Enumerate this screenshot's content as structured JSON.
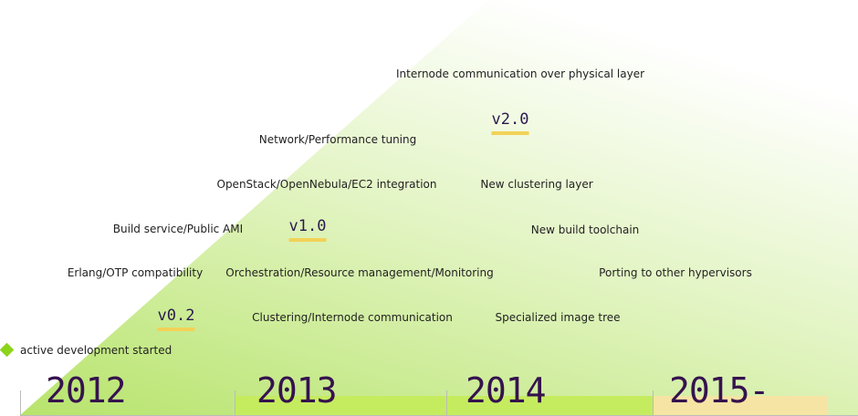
{
  "legend": {
    "text": "active development started",
    "marker_icon": "diamond-icon",
    "marker_color": "#8cd419"
  },
  "colors": {
    "wedge_start": "#b7e46c",
    "wedge_end": "#ffffff",
    "bar_green": "#c5ec5f",
    "bar_yellow": "#f6e4a4",
    "version_underline": "#f2d257",
    "year_text": "#35124e",
    "axis_line": "#bbbbbb"
  },
  "versions": {
    "v02": "v0.2",
    "v10": "v1.0",
    "v20": "v2.0"
  },
  "features": {
    "internode_physical": "Internode communication over physical layer",
    "network_tuning": "Network/Performance tuning",
    "openstack_integration": "OpenStack/OpenNebula/EC2 integration",
    "new_clustering": "New clustering layer",
    "build_service": "Build service/Public AMI",
    "new_toolchain": "New build toolchain",
    "erlang_otp": "Erlang/OTP compatibility",
    "orchestration": "Orchestration/Resource management/Monitoring",
    "porting_hypervisors": "Porting to other hypervisors",
    "clustering_internode": "Clustering/Internode communication",
    "specialized_image": "Specialized image tree"
  },
  "timeline": {
    "years": [
      "2012",
      "2013",
      "2014",
      "2015-"
    ]
  }
}
